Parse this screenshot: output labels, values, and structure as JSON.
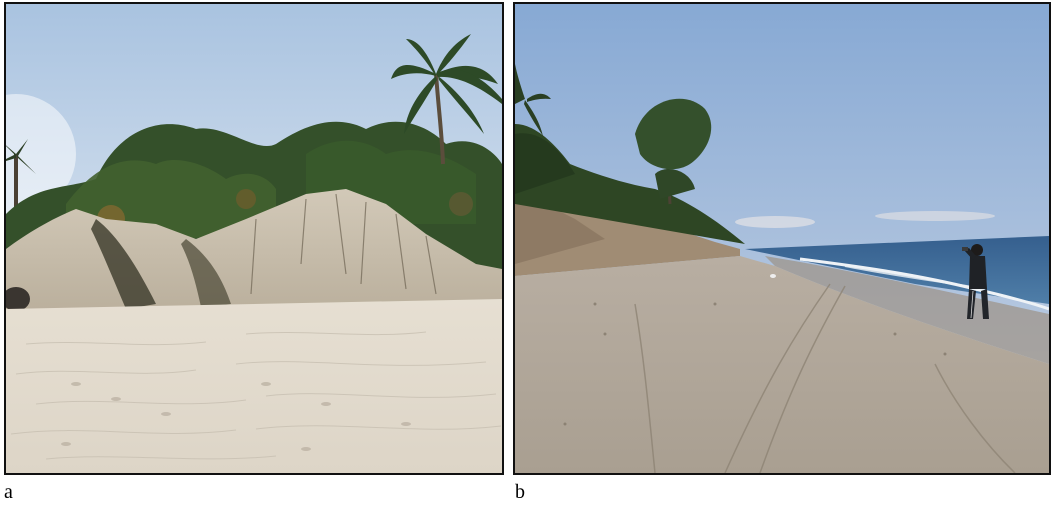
{
  "panels": [
    {
      "label": "a"
    },
    {
      "label": "b"
    }
  ],
  "colors": {
    "sky_a_top": "#c6d6ea",
    "sky_a_bottom": "#e6ecf4",
    "sky_b_top": "#8fb0d8",
    "sky_b_bottom": "#c8d4e6",
    "sand_light": "#e9e3d7",
    "sand_dark": "#b0a79a",
    "dune_face": "#c8bfae",
    "vegetation": "#2f4a24",
    "sea": "#3f6e9a",
    "surf": "#e8eef4",
    "frame": "#111111"
  }
}
